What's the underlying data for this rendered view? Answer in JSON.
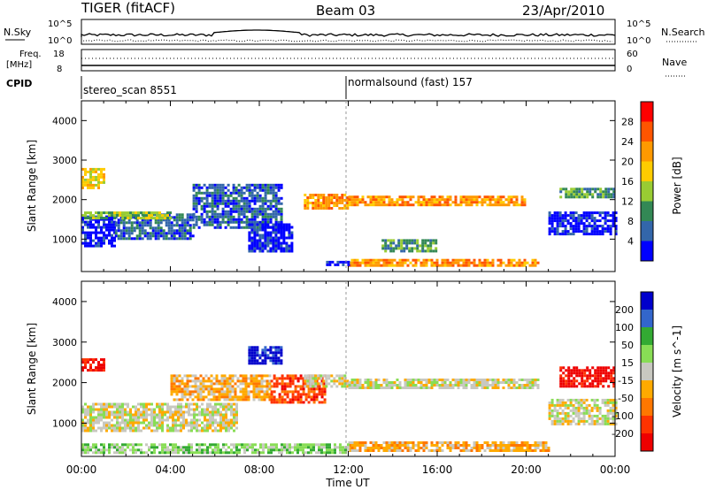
{
  "header": {
    "radar": "TIGER (fitACF)",
    "beam": "Beam 03",
    "date": "23/Apr/2010"
  },
  "top_panels": {
    "nsky_label": "N.Sky",
    "nsky_ticks": [
      "10^5",
      "10^0"
    ],
    "nsearch_label": "N.Search",
    "nsearch_ticks": [
      "10^5",
      "10^0"
    ],
    "freq_label_1": "Freq.",
    "freq_label_2": "[MHz]",
    "freq_ticks": [
      "18",
      "8"
    ],
    "nave_label": "Nave",
    "nave_ticks": [
      "60",
      "0"
    ],
    "cpid_label": "CPID",
    "cpid_segments": [
      {
        "text": "stereo_scan 8551",
        "start_hour": 0
      },
      {
        "text": "normalsound (fast) 157",
        "start_hour": 12
      }
    ]
  },
  "chart_data": [
    {
      "type": "heatmap",
      "name": "power",
      "ylabel": "Slant Range [km]",
      "xlabel": "",
      "x_ticks": [
        "00:00",
        "04:00",
        "08:00",
        "12:00",
        "16:00",
        "20:00",
        "00:00"
      ],
      "xlim": [
        0,
        24
      ],
      "ylim": [
        180,
        4500
      ],
      "y_ticks": [
        1000,
        2000,
        3000,
        4000
      ],
      "colorbar": {
        "label": "Power [dB]",
        "ticks": [
          "28",
          "24",
          "20",
          "16",
          "12",
          "8",
          "4"
        ],
        "colors": [
          "#ff0000",
          "#ff5500",
          "#ff9900",
          "#ffcc00",
          "#99cc33",
          "#338855",
          "#3366aa",
          "#0000ff"
        ]
      },
      "bands": [
        {
          "x": [
            0.0,
            1.5
          ],
          "y": [
            850,
            1600
          ],
          "level": 7
        },
        {
          "x": [
            1.5,
            5.0
          ],
          "y": [
            1000,
            1650
          ],
          "level": 6
        },
        {
          "x": [
            5.0,
            9.0
          ],
          "y": [
            1300,
            2400
          ],
          "level": 6
        },
        {
          "x": [
            7.5,
            9.5
          ],
          "y": [
            700,
            1400
          ],
          "level": 7
        },
        {
          "x": [
            0.0,
            4.0
          ],
          "y": [
            1550,
            1700
          ],
          "level": 4
        },
        {
          "x": [
            10.0,
            12.0
          ],
          "y": [
            1800,
            2150
          ],
          "level": 2
        },
        {
          "x": [
            12.0,
            20.0
          ],
          "y": [
            1850,
            2100
          ],
          "level": 2
        },
        {
          "x": [
            13.5,
            16.0
          ],
          "y": [
            700,
            1000
          ],
          "level": 5
        },
        {
          "x": [
            12.0,
            20.5
          ],
          "y": [
            300,
            500
          ],
          "level": 2
        },
        {
          "x": [
            21.0,
            24.0
          ],
          "y": [
            1100,
            1700
          ],
          "level": 7
        },
        {
          "x": [
            21.5,
            24.0
          ],
          "y": [
            2050,
            2300
          ],
          "level": 5
        },
        {
          "x": [
            0.0,
            1.0
          ],
          "y": [
            2300,
            2800
          ],
          "level": 3
        },
        {
          "x": [
            11.0,
            12.0
          ],
          "y": [
            350,
            450
          ],
          "level": 7
        }
      ]
    },
    {
      "type": "heatmap",
      "name": "velocity",
      "ylabel": "Slant Range [km]",
      "xlabel": "Time UT",
      "x_ticks": [
        "00:00",
        "04:00",
        "08:00",
        "12:00",
        "16:00",
        "20:00",
        "00:00"
      ],
      "xlim": [
        0,
        24
      ],
      "ylim": [
        180,
        4500
      ],
      "y_ticks": [
        1000,
        2000,
        3000,
        4000
      ],
      "colorbar": {
        "label": "Velocity [m s^-1]",
        "ticks": [
          "200",
          "100",
          "50",
          "15",
          "-15",
          "-50",
          "-100",
          "-200"
        ],
        "colors": [
          "#0000cc",
          "#3366cc",
          "#33aa33",
          "#88dd55",
          "#c8c8c0",
          "#ffaa00",
          "#ff7700",
          "#ff3300",
          "#ee0000"
        ]
      },
      "bands": [
        {
          "x": [
            0.0,
            7.0
          ],
          "y": [
            800,
            1500
          ],
          "level": 4
        },
        {
          "x": [
            4.0,
            8.5
          ],
          "y": [
            1600,
            2200
          ],
          "level": 5
        },
        {
          "x": [
            8.5,
            11.0
          ],
          "y": [
            1500,
            2200
          ],
          "level": 7
        },
        {
          "x": [
            10.0,
            12.0
          ],
          "y": [
            1900,
            2200
          ],
          "level": 4
        },
        {
          "x": [
            12.0,
            20.5
          ],
          "y": [
            1850,
            2100
          ],
          "level": 4
        },
        {
          "x": [
            12.0,
            21.0
          ],
          "y": [
            300,
            550
          ],
          "level": 5
        },
        {
          "x": [
            0.0,
            12.0
          ],
          "y": [
            250,
            500
          ],
          "level": 3
        },
        {
          "x": [
            21.0,
            24.0
          ],
          "y": [
            1000,
            1600
          ],
          "level": 4
        },
        {
          "x": [
            21.5,
            24.0
          ],
          "y": [
            1900,
            2400
          ],
          "level": 8
        },
        {
          "x": [
            0.0,
            1.0
          ],
          "y": [
            2300,
            2600
          ],
          "level": 8
        },
        {
          "x": [
            7.5,
            9.0
          ],
          "y": [
            2500,
            2900
          ],
          "level": 0
        }
      ]
    }
  ]
}
